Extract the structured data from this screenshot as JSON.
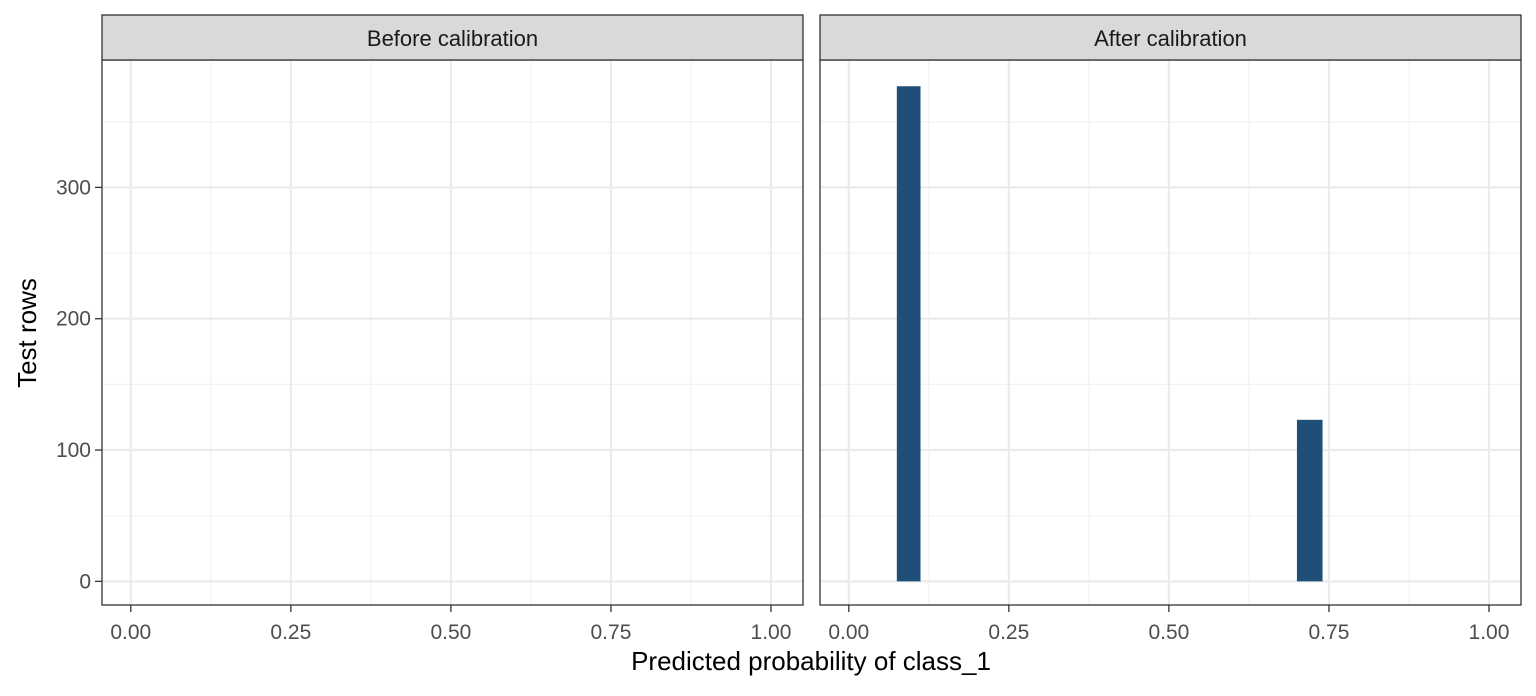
{
  "chart_data": {
    "type": "bar",
    "xlabel": "Predicted probability of class_1",
    "ylabel": "Test rows",
    "xlim": [
      -0.045,
      1.05
    ],
    "ylim": [
      -18,
      397
    ],
    "x_ticks": [
      0,
      0.25,
      0.5,
      0.75,
      1
    ],
    "x_tick_labels": [
      "0.00",
      "0.25",
      "0.50",
      "0.75",
      "1.00"
    ],
    "x_minor_ticks": [
      0.125,
      0.375,
      0.625,
      0.875
    ],
    "y_ticks": [
      0,
      100,
      200,
      300
    ],
    "y_tick_labels": [
      "0",
      "100",
      "200",
      "300"
    ],
    "y_minor_ticks": [
      50,
      150,
      250,
      350
    ],
    "grid": true,
    "bar_color": "#1F4E79",
    "panels": [
      {
        "strip_label": "Before calibration",
        "bars": []
      },
      {
        "strip_label": "After calibration",
        "bars": [
          {
            "x0": 0.075,
            "x1": 0.112,
            "count": 377
          },
          {
            "x0": 0.7,
            "x1": 0.74,
            "count": 123
          }
        ]
      }
    ]
  }
}
